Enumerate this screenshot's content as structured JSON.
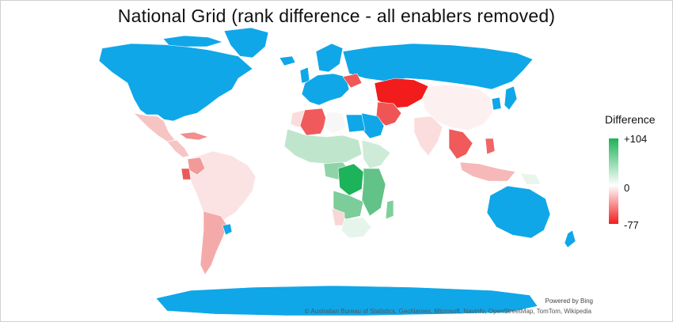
{
  "title": "National Grid (rank difference - all enablers removed)",
  "legend": {
    "title": "Difference",
    "max_label": "+104",
    "mid_label": "0",
    "min_label": "-77",
    "max_value": 104,
    "mid_value": 0,
    "min_value": -77,
    "colors": {
      "max": "#1db35a",
      "mid": "#ffffff",
      "min": "#f21c1c",
      "no_data": "#0fa7e8"
    }
  },
  "footer": {
    "powered_by": "Powered by Bing",
    "attribution": "© Australian Bureau of Statistics, GeoNames, Microsoft, Navinfo, OpenStreetMap, TomTom, Wikipedia"
  },
  "regions": [
    {
      "name": "north-america",
      "fill": "#0fa7e8"
    },
    {
      "name": "greenland",
      "fill": "#0fa7e8"
    },
    {
      "name": "canada-arctic-islands",
      "fill": "#0fa7e8"
    },
    {
      "name": "mexico",
      "fill": "#f7c4c4"
    },
    {
      "name": "central-america",
      "fill": "#f7c4c4"
    },
    {
      "name": "caribbean",
      "fill": "#f28e8e"
    },
    {
      "name": "south-america",
      "fill": "#fbe3e3"
    },
    {
      "name": "colombia",
      "fill": "#f29999"
    },
    {
      "name": "ecuador",
      "fill": "#e85a5a"
    },
    {
      "name": "chile-argentina",
      "fill": "#f5aaaa"
    },
    {
      "name": "uruguay",
      "fill": "#0fa7e8"
    },
    {
      "name": "europe",
      "fill": "#0fa7e8"
    },
    {
      "name": "scandinavia",
      "fill": "#0fa7e8"
    },
    {
      "name": "uk-ireland",
      "fill": "#0fa7e8"
    },
    {
      "name": "iceland",
      "fill": "#0fa7e8"
    },
    {
      "name": "russia",
      "fill": "#0fa7e8"
    },
    {
      "name": "ukraine",
      "fill": "#ef5858"
    },
    {
      "name": "kazakhstan-central-asia",
      "fill": "#f21c1c"
    },
    {
      "name": "iran-caucasus",
      "fill": "#f05555"
    },
    {
      "name": "saudi-gulf",
      "fill": "#0fa7e8"
    },
    {
      "name": "mongolia-china",
      "fill": "#fdf0f0"
    },
    {
      "name": "india",
      "fill": "#fbdddd"
    },
    {
      "name": "southeast-asia",
      "fill": "#f05a5a"
    },
    {
      "name": "indonesia",
      "fill": "#f6b8b8"
    },
    {
      "name": "philippines",
      "fill": "#f06666"
    },
    {
      "name": "japan",
      "fill": "#0fa7e8"
    },
    {
      "name": "korea",
      "fill": "#0fa7e8"
    },
    {
      "name": "png",
      "fill": "#e8f5ec"
    },
    {
      "name": "australia",
      "fill": "#0fa7e8"
    },
    {
      "name": "new-zealand",
      "fill": "#0fa7e8"
    },
    {
      "name": "algeria",
      "fill": "#f05a5a"
    },
    {
      "name": "morocco",
      "fill": "#fbdcdc"
    },
    {
      "name": "libya",
      "fill": "#f7f7f7"
    },
    {
      "name": "egypt",
      "fill": "#0fa7e8"
    },
    {
      "name": "sahel-west-africa",
      "fill": "#bfe6cc"
    },
    {
      "name": "horn-of-africa",
      "fill": "#cdebd7"
    },
    {
      "name": "central-africa",
      "fill": "#8fd4a8"
    },
    {
      "name": "drc",
      "fill": "#1db35a"
    },
    {
      "name": "east-africa",
      "fill": "#62c287"
    },
    {
      "name": "angola-zambia",
      "fill": "#7ccd9a"
    },
    {
      "name": "southern-africa",
      "fill": "#e6f5eb"
    },
    {
      "name": "namibia",
      "fill": "#f8d6d6"
    },
    {
      "name": "madagascar",
      "fill": "#7fcf9d"
    },
    {
      "name": "antarctica",
      "fill": "#0fa7e8"
    }
  ]
}
